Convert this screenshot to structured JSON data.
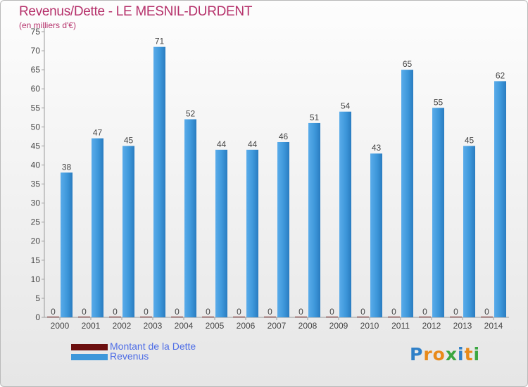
{
  "header": {
    "title": "Revenus/Dette - LE MESNIL-DURDENT",
    "subtitle": "(en milliers d'€)"
  },
  "chart_data": {
    "type": "bar",
    "title": "Revenus/Dette - LE MESNIL-DURDENT",
    "ylabel": "(en milliers d'€)",
    "xlabel": "",
    "ylim": [
      0,
      75
    ],
    "yticks": [
      0,
      5,
      10,
      15,
      20,
      25,
      30,
      35,
      40,
      45,
      50,
      55,
      60,
      65,
      70,
      75
    ],
    "grid": false,
    "legend_position": "bottom-left",
    "categories": [
      "2000",
      "2001",
      "2002",
      "2003",
      "2004",
      "2005",
      "2006",
      "2007",
      "2008",
      "2009",
      "2010",
      "2011",
      "2012",
      "2013",
      "2014"
    ],
    "series": [
      {
        "name": "Montant de la Dette",
        "color": "#6b0f0f",
        "values": [
          0,
          0,
          0,
          0,
          0,
          0,
          0,
          0,
          0,
          0,
          0,
          0,
          0,
          0,
          0
        ]
      },
      {
        "name": "Revenus",
        "color": "#3d97da",
        "values": [
          38,
          47,
          45,
          71,
          52,
          44,
          44,
          46,
          51,
          54,
          43,
          65,
          55,
          45,
          62
        ]
      }
    ]
  },
  "logo": {
    "letters": [
      "P",
      "r",
      "o",
      "x",
      "i",
      "t",
      "i"
    ],
    "colors": [
      "#2f80c8",
      "#e88a1a",
      "#e88a1a",
      "#3aa640",
      "#2f80c8",
      "#e88a1a",
      "#3aa640"
    ]
  }
}
